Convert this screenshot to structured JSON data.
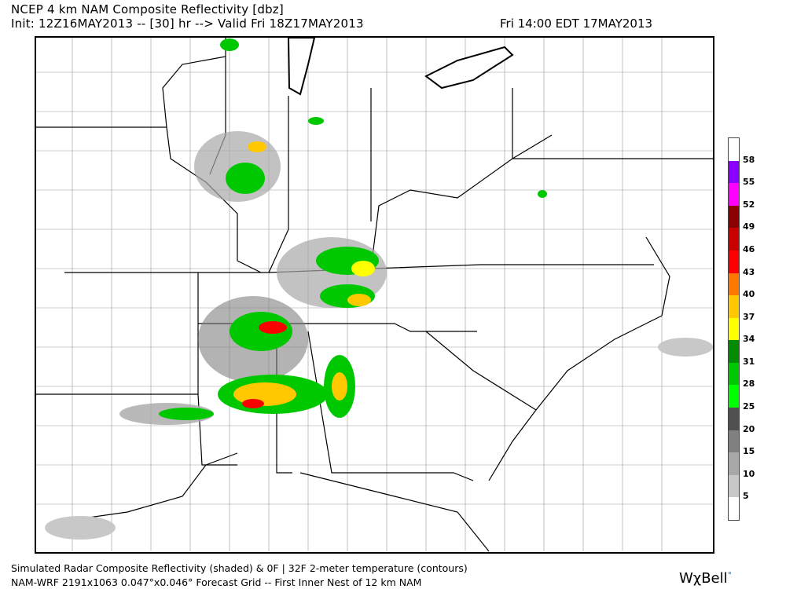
{
  "header": {
    "title": "NCEP 4 km NAM Composite Reflectivity [dbz]",
    "init_line": "Init: 12Z16MAY2013 -- [30] hr --> Valid Fri 18Z17MAY2013",
    "valid_local": "Fri 14:00 EDT 17MAY2013"
  },
  "legend": {
    "ticks": [
      "58",
      "55",
      "52",
      "49",
      "46",
      "43",
      "40",
      "37",
      "34",
      "31",
      "28",
      "25",
      "20",
      "15",
      "10",
      "5"
    ],
    "colors": [
      "#ffffff",
      "#8b00ff",
      "#ff00ff",
      "#8b0000",
      "#c80000",
      "#ff0000",
      "#ff7800",
      "#ffc800",
      "#ffff00",
      "#008c00",
      "#00c800",
      "#00ff00",
      "#505050",
      "#808080",
      "#a8a8a8",
      "#c8c8c8",
      "#ffffff"
    ]
  },
  "footer": {
    "line1": "Simulated Radar Composite Reflectivity (shaded) & 0F | 32F 2-meter temperature (contours)",
    "line2": "NAM-WRF 2191x1063 0.047°x0.046° Forecast Grid -- First Inner Nest of 12 km NAM",
    "logo": "WχBell"
  }
}
